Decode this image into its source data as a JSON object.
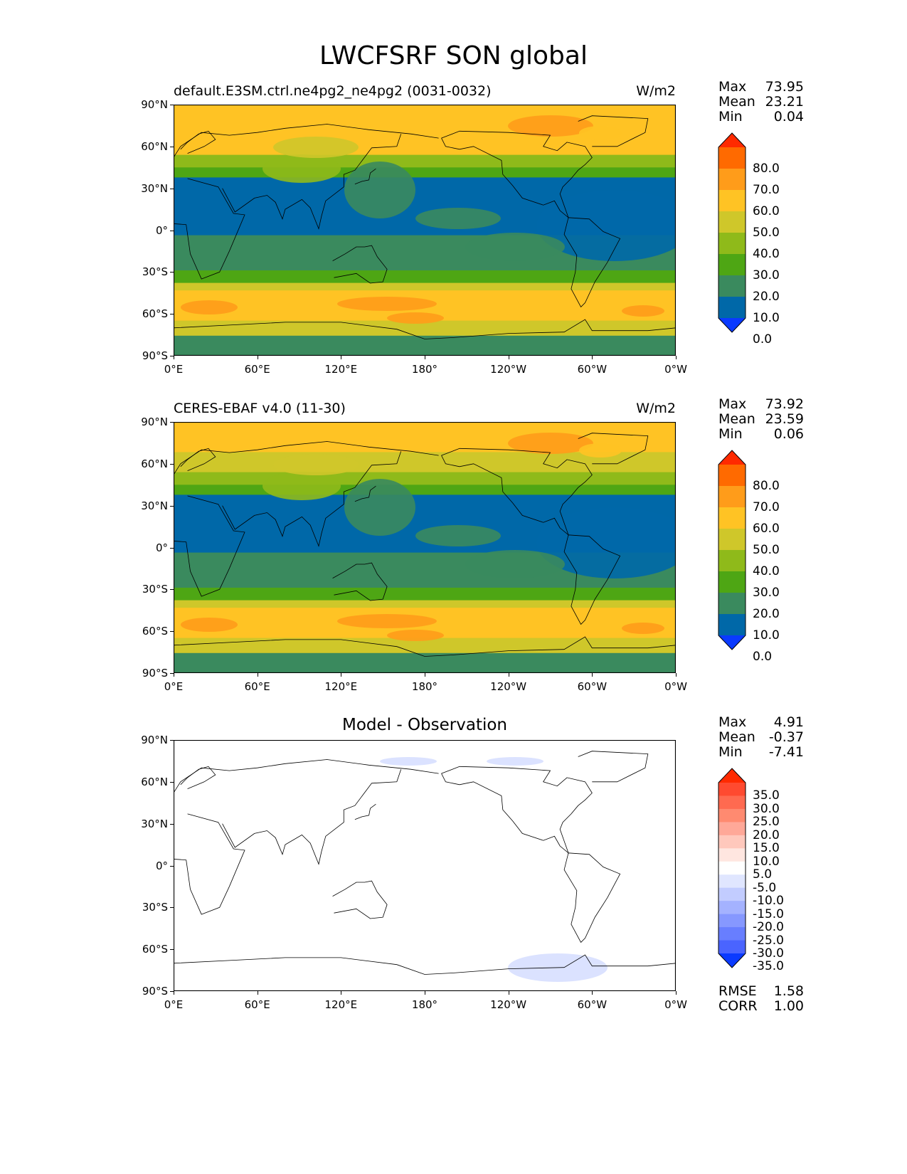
{
  "title": "LWCFSRF SON global",
  "panels": [
    {
      "id": "test",
      "title_left": "default.E3SM.ctrl.ne4pg2_ne4pg2 (0031-0032)",
      "title_center": "",
      "units": "W/m2",
      "stats": [
        {
          "label": "Max",
          "value": "73.95"
        },
        {
          "label": "Mean",
          "value": "23.21"
        },
        {
          "label": "Min",
          "value": "0.04"
        }
      ],
      "colorbar": {
        "labels": [
          "80.0",
          "70.0",
          "60.0",
          "50.0",
          "40.0",
          "30.0",
          "20.0",
          "10.0",
          "0.0"
        ],
        "colors": [
          "#ff2a00",
          "#ff6a00",
          "#ff9c1a",
          "#ffc324",
          "#cfc72a",
          "#8fba1a",
          "#4ea614",
          "#3a8a5e",
          "#0068a8",
          "#0a3aff"
        ]
      }
    },
    {
      "id": "reference",
      "title_left": "CERES-EBAF v4.0 (11-30)",
      "title_center": "",
      "units": "W/m2",
      "stats": [
        {
          "label": "Max",
          "value": "73.92"
        },
        {
          "label": "Mean",
          "value": "23.59"
        },
        {
          "label": "Min",
          "value": "0.06"
        }
      ],
      "colorbar": {
        "labels": [
          "80.0",
          "70.0",
          "60.0",
          "50.0",
          "40.0",
          "30.0",
          "20.0",
          "10.0",
          "0.0"
        ],
        "colors": [
          "#ff2a00",
          "#ff6a00",
          "#ff9c1a",
          "#ffc324",
          "#cfc72a",
          "#8fba1a",
          "#4ea614",
          "#3a8a5e",
          "#0068a8",
          "#0a3aff"
        ]
      }
    },
    {
      "id": "diff",
      "title_left": "",
      "title_center": "Model - Observation",
      "units": "",
      "stats": [
        {
          "label": "Max",
          "value": "4.91"
        },
        {
          "label": "Mean",
          "value": "-0.37"
        },
        {
          "label": "Min",
          "value": "-7.41"
        }
      ],
      "extra_stats": [
        {
          "label": "RMSE",
          "value": "1.58"
        },
        {
          "label": "CORR",
          "value": "1.00"
        }
      ],
      "colorbar": {
        "labels": [
          "35.0",
          "30.0",
          "25.0",
          "20.0",
          "15.0",
          "10.0",
          "5.0",
          "-5.0",
          "-10.0",
          "-15.0",
          "-20.0",
          "-25.0",
          "-30.0",
          "-35.0"
        ],
        "colors": [
          "#ff2a00",
          "#ff4a30",
          "#ff6a50",
          "#ff8a70",
          "#ffa898",
          "#ffc8bc",
          "#ffe6e0",
          "#ffffff",
          "#e0e6ff",
          "#c2ccff",
          "#a4b2ff",
          "#8698ff",
          "#687eff",
          "#4a64ff",
          "#0a3aff"
        ]
      }
    }
  ],
  "axes": {
    "lat_ticks": [
      "90°N",
      "60°N",
      "30°N",
      "0°",
      "30°S",
      "60°S",
      "90°S"
    ],
    "lon_ticks": [
      "0°E",
      "60°E",
      "120°E",
      "180°",
      "120°W",
      "60°W",
      "0°W"
    ]
  }
}
